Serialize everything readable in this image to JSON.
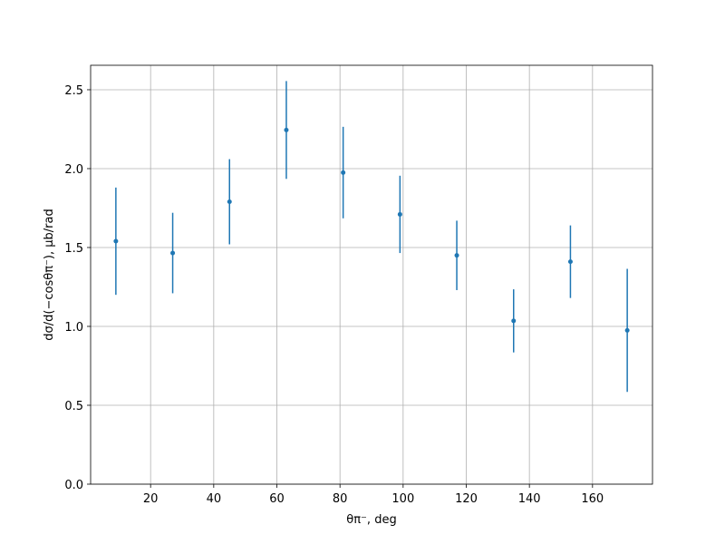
{
  "chart_data": {
    "type": "errorbar",
    "xlabel": "θπ⁻, deg",
    "ylabel": "dσ/d(−cosθπ⁻), μb/rad",
    "x": [
      9,
      27,
      45,
      63,
      81,
      99,
      117,
      135,
      153,
      171
    ],
    "series": [
      {
        "color": "#1f77b4",
        "values": [
          1.54,
          1.465,
          1.79,
          2.245,
          1.975,
          1.71,
          1.45,
          1.035,
          1.41,
          0.975
        ],
        "errors": [
          0.34,
          0.255,
          0.27,
          0.31,
          0.29,
          0.245,
          0.22,
          0.2,
          0.23,
          0.39
        ]
      }
    ],
    "xlim": [
      1,
      179
    ],
    "ylim": [
      0,
      2.655
    ],
    "xticks": [
      20,
      40,
      60,
      80,
      100,
      120,
      140,
      160
    ],
    "yticks": [
      {
        "value": 0,
        "label": "0.0"
      },
      0.5,
      {
        "value": 1,
        "label": "1.0"
      },
      1.5,
      {
        "value": 2,
        "label": "2.0"
      },
      2.5
    ],
    "grid": true
  }
}
